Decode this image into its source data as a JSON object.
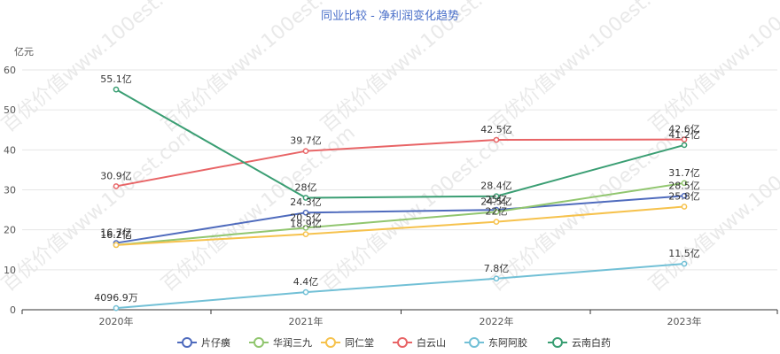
{
  "chart_data": {
    "type": "line",
    "title": "同业比较 - 净利润变化趋势",
    "ylabel": "亿元",
    "categories": [
      "2020年",
      "2021年",
      "2022年",
      "2023年"
    ],
    "ylim": [
      0,
      60
    ],
    "yticks": [
      "0",
      "10",
      "20",
      "30",
      "40",
      "50",
      "60"
    ],
    "grid": true,
    "legend_position": "bottom",
    "series": [
      {
        "name": "片仔癀",
        "color": "#4f6bbd",
        "values": [
          16.7,
          24.3,
          25.0,
          28.5
        ],
        "labels": [
          "16.7亿",
          "24.3亿",
          "25亿",
          "28.5亿"
        ]
      },
      {
        "name": "华润三九",
        "color": "#91c66f",
        "values": [
          16.2,
          20.5,
          24.5,
          31.7
        ],
        "labels": [
          "16.2亿",
          "20.5亿",
          "24.5亿",
          "31.7亿"
        ]
      },
      {
        "name": "同仁堂",
        "color": "#f6c24d",
        "values": [
          16.2,
          18.9,
          22.0,
          25.8
        ],
        "labels": [
          "16.2亿",
          "18.9亿",
          "22亿",
          "25.8亿"
        ]
      },
      {
        "name": "白云山",
        "color": "#e86466",
        "values": [
          30.9,
          39.7,
          42.5,
          42.6
        ],
        "labels": [
          "30.9亿",
          "39.7亿",
          "42.5亿",
          "42.6亿"
        ]
      },
      {
        "name": "东阿阿胶",
        "color": "#72c0d6",
        "values": [
          0.41,
          4.4,
          7.8,
          11.5
        ],
        "labels": [
          "4096.9万",
          "4.4亿",
          "7.8亿",
          "11.5亿"
        ]
      },
      {
        "name": "云南白药",
        "color": "#3a9e73",
        "values": [
          55.1,
          28.0,
          28.4,
          41.2
        ],
        "labels": [
          "55.1亿",
          "28亿",
          "28.4亿",
          "41.2亿"
        ]
      }
    ]
  },
  "watermark": "百优价值www.100est.com"
}
